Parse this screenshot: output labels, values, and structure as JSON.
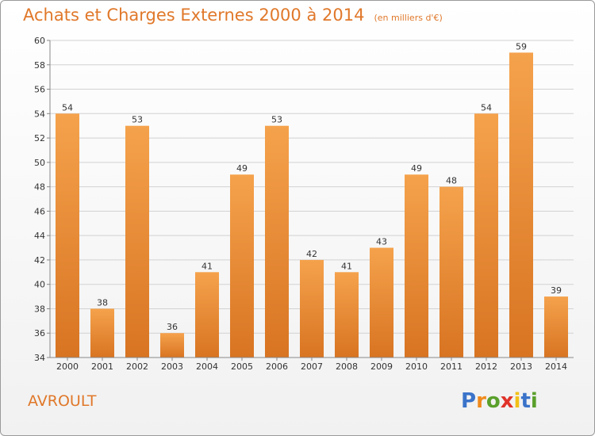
{
  "header": {
    "title": "Achats et Charges Externes 2000 à 2014",
    "unit": "(en milliers d'€)"
  },
  "footer": {
    "commune": "AVROULT",
    "logo_text": "Proxiti",
    "logo_letters": [
      "P",
      "r",
      "o",
      "x",
      "i",
      "t",
      "i"
    ],
    "logo_colors": [
      "#3a73c9",
      "#f08a1c",
      "#5aa02c",
      "#e0332a",
      "#f2c018",
      "#3a73c9",
      "#5aa02c"
    ]
  },
  "colors": {
    "accent": "#e0782a",
    "bar_top": "#f5a24c",
    "bar_bottom": "#d87422"
  },
  "chart_data": {
    "type": "bar",
    "title": "Achats et Charges Externes 2000 à 2014",
    "subtitle": "(en milliers d'€)",
    "categories": [
      "2000",
      "2001",
      "2002",
      "2003",
      "2004",
      "2005",
      "2006",
      "2007",
      "2008",
      "2009",
      "2010",
      "2011",
      "2012",
      "2013",
      "2014"
    ],
    "values": [
      54,
      38,
      53,
      36,
      41,
      49,
      53,
      42,
      41,
      43,
      49,
      48,
      54,
      59,
      39
    ],
    "value_labels": [
      "54",
      "38",
      "53",
      "36",
      "41",
      "49",
      "53",
      "42",
      "41",
      "43",
      "49",
      "48",
      "54",
      "59",
      "39"
    ],
    "ylim": [
      34,
      60
    ],
    "yticks": [
      34,
      36,
      38,
      40,
      42,
      44,
      46,
      48,
      50,
      52,
      54,
      56,
      58,
      60
    ],
    "ytick_labels": [
      "34",
      "36",
      "38",
      "40",
      "42",
      "44",
      "46",
      "48",
      "50",
      "52",
      "54",
      "56",
      "58",
      "60"
    ],
    "grid": true,
    "xlabel": "",
    "ylabel": ""
  }
}
